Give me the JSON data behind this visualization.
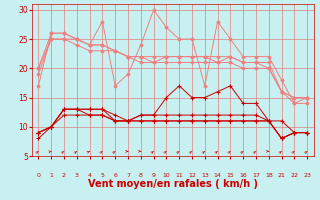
{
  "bg_color": "#c8f0f0",
  "grid_color": "#e08080",
  "xlabel": "Vent moyen/en rafales ( km/h )",
  "xlabel_color": "#cc0000",
  "xlabel_fontsize": 7,
  "tick_color": "#cc0000",
  "ylim": [
    5,
    31
  ],
  "yticks": [
    5,
    10,
    15,
    20,
    25,
    30
  ],
  "hours": [
    0,
    1,
    2,
    3,
    4,
    5,
    6,
    7,
    8,
    9,
    10,
    11,
    12,
    13,
    14,
    15,
    16,
    17,
    18,
    21,
    22,
    23
  ],
  "light_lines": [
    [
      17,
      26,
      26,
      25,
      24,
      28,
      17,
      19,
      24,
      30,
      27,
      25,
      25,
      17,
      28,
      25,
      22,
      22,
      22,
      18,
      14,
      15
    ],
    [
      20,
      26,
      26,
      25,
      24,
      24,
      23,
      22,
      22,
      22,
      22,
      22,
      22,
      22,
      22,
      22,
      21,
      21,
      21,
      16,
      15,
      15
    ],
    [
      20,
      25,
      25,
      25,
      24,
      24,
      23,
      22,
      22,
      21,
      22,
      22,
      22,
      22,
      21,
      22,
      21,
      21,
      20,
      16,
      15,
      15
    ],
    [
      19,
      25,
      25,
      24,
      23,
      23,
      23,
      22,
      21,
      21,
      21,
      21,
      21,
      21,
      21,
      21,
      20,
      20,
      20,
      16,
      14,
      14
    ]
  ],
  "light_color": "#f08080",
  "light_lw": 0.7,
  "light_marker": "D",
  "light_markersize": 1.5,
  "dark_lines": [
    [
      8,
      10,
      13,
      13,
      13,
      13,
      11,
      11,
      12,
      12,
      15,
      17,
      15,
      15,
      16,
      17,
      14,
      14,
      11,
      11,
      9,
      9
    ],
    [
      9,
      10,
      13,
      13,
      13,
      13,
      12,
      11,
      12,
      12,
      12,
      12,
      12,
      12,
      12,
      12,
      12,
      12,
      11,
      8,
      9,
      9
    ],
    [
      9,
      10,
      13,
      13,
      12,
      12,
      11,
      11,
      11,
      11,
      11,
      11,
      11,
      11,
      11,
      11,
      11,
      11,
      11,
      8,
      9,
      9
    ],
    [
      9,
      10,
      12,
      12,
      12,
      12,
      11,
      11,
      11,
      11,
      11,
      11,
      11,
      11,
      11,
      11,
      11,
      11,
      11,
      8,
      9,
      9
    ]
  ],
  "dark_color": "#cc0000",
  "dark_lw": 0.7,
  "dark_marker": "+",
  "dark_markersize": 3,
  "arrow_color": "#cc0000",
  "arrow_directions": [
    45,
    15,
    45,
    45,
    30,
    45,
    45,
    0,
    0,
    45,
    45,
    45,
    45,
    45,
    45,
    45,
    45,
    45,
    0,
    45,
    45,
    45
  ]
}
